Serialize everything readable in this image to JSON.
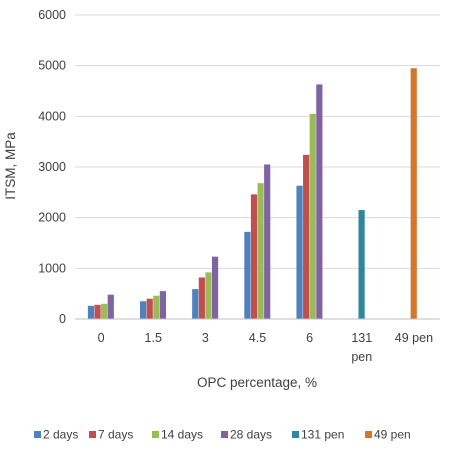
{
  "chart_data": {
    "type": "bar",
    "xlabel": "OPC percentage, %",
    "ylabel": "ITSM, MPa",
    "ylim": [
      0,
      6000
    ],
    "y_ticks": [
      "0",
      "1000",
      "2000",
      "3000",
      "4000",
      "5000",
      "6000"
    ],
    "grid": true,
    "legend_position": "bottom",
    "categories": [
      {
        "label": "0",
        "label2": ""
      },
      {
        "label": "1.5",
        "label2": ""
      },
      {
        "label": "3",
        "label2": ""
      },
      {
        "label": "4.5",
        "label2": ""
      },
      {
        "label": "6",
        "label2": ""
      },
      {
        "label": "131",
        "label2": "pen"
      },
      {
        "label": "49 pen",
        "label2": ""
      }
    ],
    "series": [
      {
        "name": "2 days",
        "color": "#4f81bd",
        "values": [
          260,
          350,
          590,
          1720,
          2630,
          null,
          null
        ]
      },
      {
        "name": "7 days",
        "color": "#c0504d",
        "values": [
          280,
          400,
          820,
          2460,
          3240,
          null,
          null
        ]
      },
      {
        "name": "14 days",
        "color": "#9bbb59",
        "values": [
          300,
          460,
          920,
          2680,
          4050,
          null,
          null
        ]
      },
      {
        "name": "28 days",
        "color": "#8064a2",
        "values": [
          480,
          550,
          1230,
          3050,
          4630,
          null,
          null
        ]
      },
      {
        "name": "131 pen",
        "color": "#31859c",
        "values": [
          null,
          null,
          null,
          null,
          null,
          2150,
          null
        ]
      },
      {
        "name": "49 pen",
        "color": "#d2772d",
        "values": [
          null,
          null,
          null,
          null,
          null,
          null,
          4950
        ]
      }
    ]
  }
}
